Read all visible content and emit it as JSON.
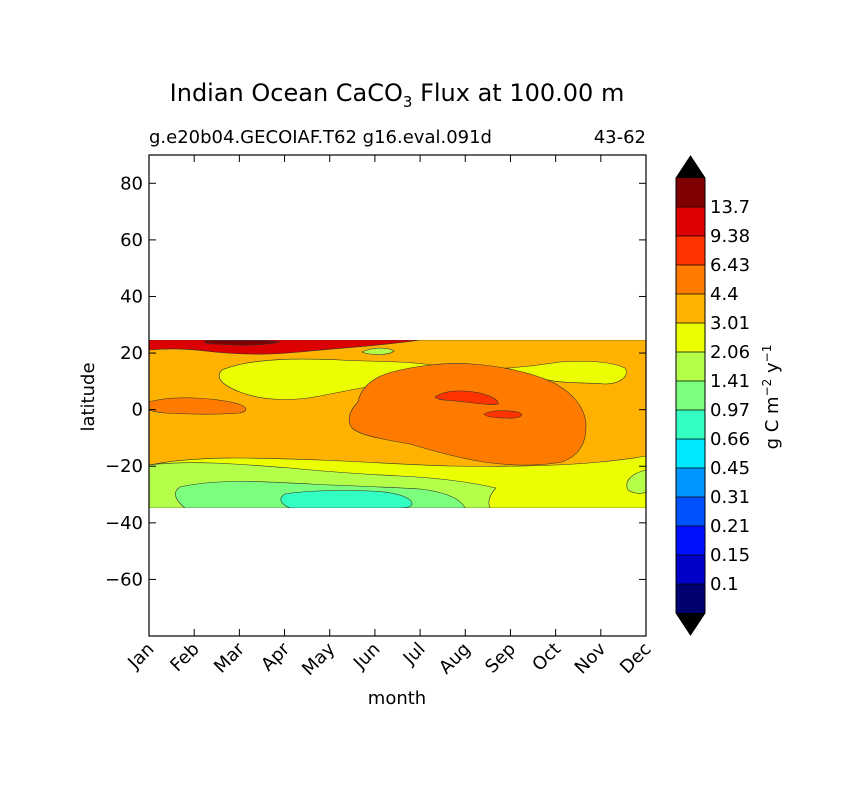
{
  "chart_data": {
    "type": "heatmap",
    "title_main": "Indian Ocean CaCO",
    "title_sub": "3",
    "title_rest": " Flux at 100.00 m",
    "subtitle_left": "g.e20b04.GECOIAF.T62 g16.eval.091d",
    "subtitle_right": "43-62",
    "xlabel": "month",
    "ylabel": "latitude",
    "x_categories": [
      "Jan",
      "Feb",
      "Mar",
      "Apr",
      "May",
      "Jun",
      "Jul",
      "Aug",
      "Sep",
      "Oct",
      "Nov",
      "Dec"
    ],
    "y_ticks": [
      "80",
      "60",
      "40",
      "20",
      "0",
      "−20",
      "−40",
      "−60"
    ],
    "ylim": [
      -80,
      90
    ],
    "data_lat_range": [
      -34,
      25
    ],
    "colorbar": {
      "label": "g C m⁻² y⁻¹",
      "levels": [
        "13.7",
        "9.38",
        "6.43",
        "4.4",
        "3.01",
        "2.06",
        "1.41",
        "0.97",
        "0.66",
        "0.45",
        "0.31",
        "0.21",
        "0.15",
        "0.1"
      ],
      "colors": [
        "#7f0000",
        "#dc0000",
        "#ff3300",
        "#ff7b00",
        "#ffb300",
        "#ebff00",
        "#b4ff4a",
        "#7cff7c",
        "#33ffc2",
        "#00e8ff",
        "#0096ff",
        "#0052ff",
        "#0010ff",
        "#0000c8",
        "#000070"
      ],
      "extend_colors": {
        "top": "#000000",
        "bottom": "#000000"
      }
    },
    "regions": [
      {
        "name": "background",
        "level": "3.01",
        "color": "#ffb300"
      },
      {
        "name": "north-red-band",
        "level": "9.38",
        "color": "#dc0000"
      },
      {
        "name": "north-darkred-patch",
        "level": "13.7",
        "color": "#7f0000"
      },
      {
        "name": "north-yellow-band",
        "level": "2.06",
        "color": "#ebff00"
      },
      {
        "name": "equatorial-orange-west",
        "level": "4.4",
        "color": "#ff7b00"
      },
      {
        "name": "central-orange-cell",
        "level": "4.4",
        "color": "#ff7b00"
      },
      {
        "name": "central-red-spot-1",
        "level": "6.43",
        "color": "#ff3300"
      },
      {
        "name": "central-red-spot-2",
        "level": "6.43",
        "color": "#ff3300"
      },
      {
        "name": "south-yellow-band",
        "level": "2.06",
        "color": "#ebff00"
      },
      {
        "name": "south-lightgreen-band",
        "level": "1.41",
        "color": "#b4ff4a"
      },
      {
        "name": "south-green-band",
        "level": "0.97",
        "color": "#7cff7c"
      },
      {
        "name": "south-cyan-patch",
        "level": "0.66",
        "color": "#33ffc2"
      }
    ]
  }
}
